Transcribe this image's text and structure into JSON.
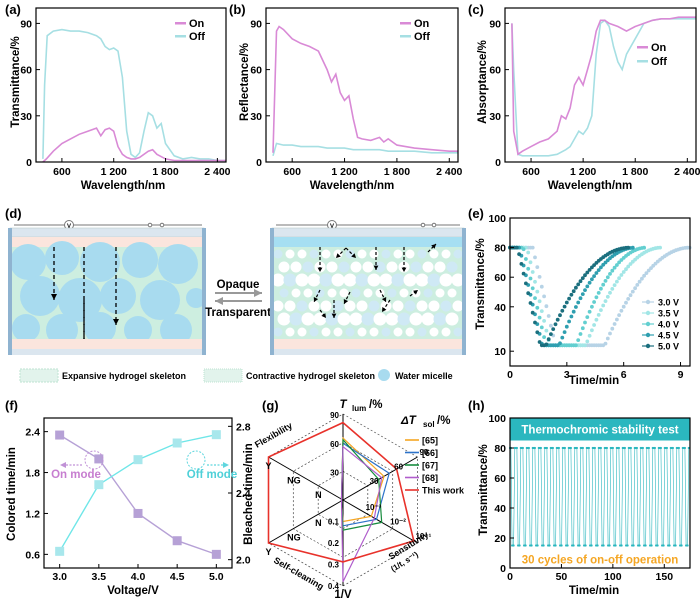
{
  "colors": {
    "on": "#d98ad6",
    "off": "#a6dfe3",
    "teal": "#2bb7bf",
    "purple": "#b6a1d6",
    "cyan": "#6fe6e8",
    "micelle": "#a8dbef",
    "red": "#e8322b",
    "orange": "#f5a623",
    "green": "#178c3e",
    "blue": "#2d73c9",
    "violet": "#b05dcc"
  },
  "panel_a": {
    "label": "(a)",
    "ylabel": "Transmittance/%",
    "xlabel": "Wavelength/nm",
    "legend": [
      "On",
      "Off"
    ],
    "xticks": [
      "600",
      "1 200",
      "1 800",
      "2 400"
    ],
    "yticks": [
      "0",
      "30",
      "60",
      "90"
    ]
  },
  "panel_b": {
    "label": "(b)",
    "ylabel": "Reflectance/%",
    "xlabel": "Wavelength/nm",
    "legend": [
      "On",
      "Off"
    ],
    "xticks": [
      "600",
      "1 200",
      "1 800",
      "2 400"
    ],
    "yticks": [
      "0",
      "30",
      "60",
      "90"
    ]
  },
  "panel_c": {
    "label": "(c)",
    "ylabel": "Absorptance/%",
    "xlabel": "Wavelength/nm",
    "legend": [
      "On",
      "Off"
    ],
    "xticks": [
      "600",
      "1 200",
      "1 800",
      "2 400"
    ],
    "yticks": [
      "0",
      "30",
      "60",
      "90"
    ]
  },
  "panel_d": {
    "label": "(d)",
    "opaque": "Opaque",
    "transparent": "Transparent",
    "legend": [
      "Expansive hydrogel skeleton",
      "Contractive hydrogel skeleton",
      "Water micelle"
    ],
    "voltmeter": "V"
  },
  "panel_e": {
    "label": "(e)",
    "ylabel": "Transmittance/%",
    "xlabel": "Time/min",
    "xticks": [
      "0",
      "3",
      "6",
      "9"
    ],
    "yticks": [
      "10",
      "40",
      "60",
      "80",
      "100"
    ],
    "legend": [
      "3.0 V",
      "3.5 V",
      "4.0 V",
      "4.5 V",
      "5.0 V"
    ]
  },
  "panel_f": {
    "label": "(f)",
    "ylabel_left": "Colored time/min",
    "ylabel_right": "Bleached time/min",
    "xlabel": "Voltage/V",
    "xticks": [
      "3.0",
      "3.5",
      "4.0",
      "4.5",
      "5.0"
    ],
    "yticks_left": [
      "0.6",
      "1.2",
      "1.8",
      "2.4"
    ],
    "yticks_right": [
      "2.0",
      "2.4",
      "2.8"
    ],
    "on_mode": "On mode",
    "off_mode": "Off mode"
  },
  "panel_g": {
    "label": "(g)",
    "axes": {
      "tlum": "T",
      "tlum_sub": "lum",
      "tlum_unit": "/%",
      "dtsol": "ΔT",
      "dtsol_sub": "sol",
      "dtsol_unit": "/%",
      "sensitivity": "Sensitivity",
      "sensitivity_unit": "(1/t, s⁻¹)",
      "v": "1/V",
      "self_cleaning": "Self-cleaning",
      "flexibility": "Flexibility"
    },
    "scale_tlum": [
      "90",
      "60",
      "30"
    ],
    "scale_dtsol": [
      "90",
      "60",
      "30"
    ],
    "scale_sens": [
      "10⁻³",
      "10⁻²",
      "10⁻¹"
    ],
    "scale_v": [
      "0.1",
      "0.2",
      "0.3",
      "0.4"
    ],
    "binary": {
      "y": "Y",
      "ng": "NG",
      "n": "N"
    },
    "legend": [
      "[65]",
      "[66]",
      "[67]",
      "[68]",
      "This work"
    ]
  },
  "panel_h": {
    "label": "(h)",
    "ylabel": "Transmittance/%",
    "xlabel": "Time/min",
    "xticks": [
      "0",
      "50",
      "100",
      "150"
    ],
    "yticks": [
      "0",
      "20",
      "40",
      "60",
      "80",
      "100"
    ],
    "banner": "Thermochromic stability test",
    "cycles": "30 cycles of on-off operation"
  },
  "chart_data": [
    {
      "type": "line",
      "panel": "a",
      "xlabel": "Wavelength/nm",
      "ylabel": "Transmittance/%",
      "xlim": [
        300,
        2500
      ],
      "ylim": [
        0,
        100
      ],
      "series": [
        {
          "name": "On",
          "x": [
            380,
            420,
            500,
            600,
            700,
            800,
            900,
            1000,
            1050,
            1100,
            1150,
            1200,
            1250,
            1300,
            1350,
            1400,
            1450,
            1500,
            1600,
            1650,
            1700,
            1800,
            1900,
            2000,
            2100,
            2200,
            2300,
            2400,
            2500
          ],
          "y": [
            0,
            2,
            7,
            12,
            15,
            18,
            20,
            22,
            17,
            21,
            22,
            20,
            10,
            5,
            3,
            2,
            2,
            3,
            7,
            8,
            5,
            2,
            1,
            1,
            1,
            1,
            1,
            1,
            1
          ]
        },
        {
          "name": "Off",
          "x": [
            380,
            400,
            430,
            500,
            600,
            700,
            800,
            900,
            1000,
            1050,
            1100,
            1150,
            1200,
            1250,
            1300,
            1350,
            1400,
            1450,
            1500,
            1550,
            1600,
            1650,
            1700,
            1750,
            1800,
            1900,
            2000,
            2100,
            2200,
            2300,
            2400,
            2500
          ],
          "y": [
            2,
            50,
            82,
            85,
            86,
            85,
            85,
            84,
            82,
            80,
            75,
            73,
            74,
            72,
            55,
            20,
            5,
            3,
            6,
            20,
            32,
            30,
            22,
            25,
            12,
            4,
            2,
            3,
            2,
            2,
            1,
            1
          ]
        }
      ]
    },
    {
      "type": "line",
      "panel": "b",
      "xlabel": "Wavelength/nm",
      "ylabel": "Reflectance/%",
      "xlim": [
        300,
        2500
      ],
      "ylim": [
        0,
        100
      ],
      "series": [
        {
          "name": "On",
          "x": [
            380,
            420,
            450,
            500,
            600,
            700,
            800,
            900,
            1000,
            1050,
            1100,
            1150,
            1200,
            1250,
            1300,
            1350,
            1400,
            1500,
            1600,
            1650,
            1700,
            1800,
            1900,
            2000,
            2200,
            2400,
            2500
          ],
          "y": [
            6,
            85,
            88,
            86,
            80,
            77,
            75,
            72,
            60,
            52,
            57,
            45,
            40,
            43,
            28,
            16,
            15,
            14,
            16,
            13,
            15,
            11,
            10,
            9,
            8,
            7,
            7
          ]
        },
        {
          "name": "Off",
          "x": [
            380,
            420,
            500,
            600,
            700,
            800,
            900,
            1000,
            1100,
            1200,
            1300,
            1400,
            1500,
            1600,
            1700,
            1800,
            1900,
            2000,
            2200,
            2400,
            2500
          ],
          "y": [
            4,
            12,
            11,
            11,
            10,
            10,
            10,
            9,
            9,
            9,
            8,
            8,
            8,
            8,
            7,
            7,
            7,
            7,
            6,
            6,
            6
          ]
        }
      ]
    },
    {
      "type": "line",
      "panel": "c",
      "xlabel": "Wavelength/nm",
      "ylabel": "Absorptance/%",
      "xlim": [
        300,
        2500
      ],
      "ylim": [
        0,
        100
      ],
      "series": [
        {
          "name": "On",
          "x": [
            380,
            400,
            450,
            500,
            600,
            700,
            800,
            900,
            950,
            1000,
            1050,
            1100,
            1150,
            1200,
            1250,
            1300,
            1350,
            1400,
            1450,
            1500,
            1600,
            1700,
            1800,
            1900,
            2000,
            2100,
            2200,
            2300,
            2400,
            2500
          ],
          "y": [
            90,
            20,
            5,
            7,
            10,
            13,
            15,
            20,
            30,
            28,
            35,
            50,
            55,
            50,
            60,
            70,
            85,
            92,
            92,
            90,
            88,
            85,
            88,
            90,
            92,
            93,
            93,
            94,
            94,
            94
          ],
          "note": "purple"
        },
        {
          "name": "Off",
          "x": [
            380,
            400,
            450,
            500,
            600,
            700,
            800,
            900,
            1000,
            1050,
            1100,
            1150,
            1200,
            1250,
            1300,
            1350,
            1400,
            1450,
            1500,
            1550,
            1600,
            1650,
            1700,
            1800,
            1900,
            2000,
            2100,
            2200,
            2300,
            2400,
            2500
          ],
          "y": [
            90,
            60,
            5,
            4,
            4,
            4,
            4,
            5,
            8,
            10,
            15,
            20,
            18,
            22,
            30,
            70,
            90,
            92,
            88,
            75,
            65,
            60,
            70,
            80,
            90,
            92,
            93,
            93,
            93,
            93,
            93
          ]
        }
      ]
    },
    {
      "type": "scatter",
      "panel": "e",
      "xlabel": "Time/min",
      "ylabel": "Transmittance/%",
      "xlim": [
        0,
        9.5
      ],
      "ylim": [
        0,
        100
      ],
      "series": [
        {
          "name": "3.0 V",
          "on_start": 1.2,
          "on_end": 5.0,
          "off_end": 9.5
        },
        {
          "name": "3.5 V",
          "on_start": 0.9,
          "on_end": 4.0,
          "off_end": 8.0
        },
        {
          "name": "4.0 V",
          "on_start": 0.7,
          "on_end": 3.5,
          "off_end": 7.2
        },
        {
          "name": "4.5 V",
          "on_start": 0.5,
          "on_end": 2.6,
          "off_end": 6.6
        },
        {
          "name": "5.0 V",
          "on_start": 0.4,
          "on_end": 1.9,
          "off_end": 6.3
        }
      ]
    },
    {
      "type": "line",
      "panel": "f",
      "xlabel": "Voltage/V",
      "x": [
        3.0,
        3.5,
        4.0,
        4.5,
        5.0
      ],
      "series": [
        {
          "name": "Colored time",
          "axis": "left",
          "y": [
            2.35,
            2.0,
            1.2,
            0.8,
            0.6
          ]
        },
        {
          "name": "Bleached time",
          "axis": "right",
          "y": [
            2.05,
            2.45,
            2.6,
            2.7,
            2.75
          ]
        }
      ],
      "ylim_left": [
        0.4,
        2.6
      ],
      "ylim_right": [
        1.95,
        2.85
      ]
    },
    {
      "type": "radar",
      "panel": "g",
      "axes": [
        "T_lum",
        "ΔT_sol",
        "Sensitivity",
        "1/V",
        "Self-cleaning",
        "Flexibility"
      ],
      "series": [
        {
          "name": "[65]",
          "values": [
            0.72,
            0.55,
            0.38,
            0.25,
            0,
            0
          ]
        },
        {
          "name": "[66]",
          "values": [
            0.66,
            0.62,
            0.45,
            0.3,
            0,
            0
          ]
        },
        {
          "name": "[67]",
          "values": [
            0.7,
            0.48,
            0.52,
            0.35,
            0,
            0
          ]
        },
        {
          "name": "[68]",
          "values": [
            0.62,
            0.52,
            0.42,
            0.95,
            0,
            0
          ]
        },
        {
          "name": "This work",
          "values": [
            0.9,
            0.72,
            0.95,
            0.72,
            1,
            1
          ]
        }
      ]
    },
    {
      "type": "line",
      "panel": "h",
      "xlabel": "Time/min",
      "ylabel": "Transmittance/%",
      "xlim": [
        0,
        175
      ],
      "ylim": [
        0,
        100
      ],
      "cycles": 30,
      "high": 80,
      "low": 15
    }
  ]
}
